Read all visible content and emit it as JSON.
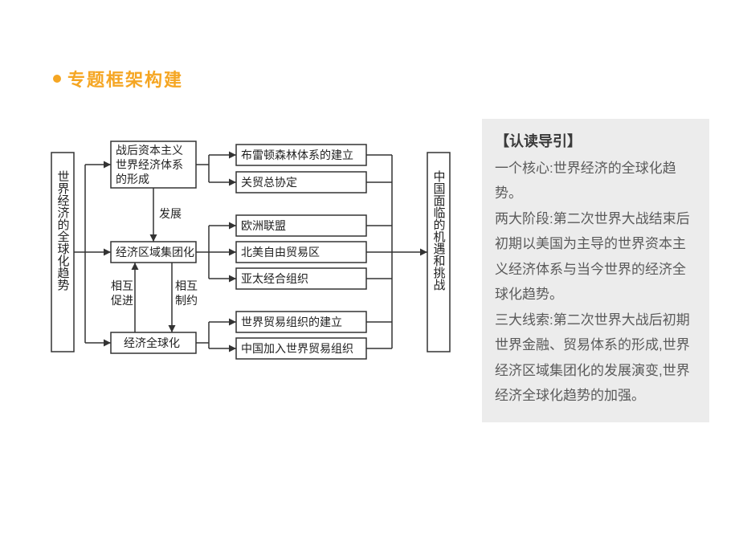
{
  "header": {
    "title": "专题框架构建",
    "bullet_color": "#f5a623",
    "title_color": "#f5a623",
    "title_fontsize": 22
  },
  "diagram": {
    "type": "flowchart",
    "background_color": "#ffffff",
    "stroke_color": "#333333",
    "stroke_width": 1.5,
    "nodes": {
      "root": {
        "label": "世界经济的全球化趋势",
        "vertical": true
      },
      "a": {
        "label_l1": "战后资本主义",
        "label_l2": "世界经济体系",
        "label_l3": "的形成"
      },
      "b": {
        "label": "经济区域集团化"
      },
      "c": {
        "label": "经济全球化"
      },
      "a1": {
        "label": "布雷顿森林体系的建立"
      },
      "a2": {
        "label": "关贸总协定"
      },
      "b1": {
        "label": "欧洲联盟"
      },
      "b2": {
        "label": "北美自由贸易区"
      },
      "b3": {
        "label": "亚太经合组织"
      },
      "c1": {
        "label": "世界贸易组织的建立"
      },
      "c2": {
        "label": "中国加入世界贸易组织"
      },
      "end": {
        "label": "中国面临的机遇和挑战",
        "vertical": true
      }
    },
    "edge_labels": {
      "ab": "发展",
      "bc_left": "相互促进",
      "bc_right": "相互制约"
    },
    "edge_label_l1": {
      "left": "相互",
      "right": "相互"
    },
    "edge_label_l2": {
      "left": "促进",
      "right": "制约"
    }
  },
  "sidebar": {
    "title": "【认读导引】",
    "body": "一个核心:世界经济的全球化趋势。\n两大阶段:第二次世界大战结束后初期以美国为主导的世界资本主义经济体系与当今世界的经济全球化趋势。\n三大线索:第二次世界大战后初期世界金融、贸易体系的形成,世界经济区域集团化的发展演变,世界经济全球化趋势的加强。",
    "title_fontsize": 18,
    "body_fontsize": 17,
    "background_color": "#ececec",
    "title_color": "#3a3a3a",
    "body_color": "#5a5a5a"
  }
}
